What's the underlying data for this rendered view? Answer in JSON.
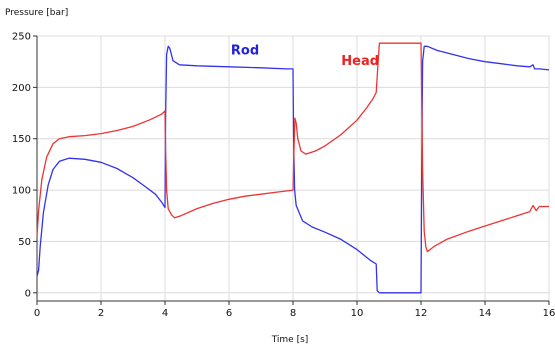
{
  "chart_data": {
    "type": "line",
    "title": "",
    "ylabel": "Pressure [bar]",
    "xlabel": "Time [s]",
    "xlim": [
      0,
      16
    ],
    "ylim": [
      -8,
      250
    ],
    "xticks": [
      0,
      2,
      4,
      6,
      8,
      10,
      12,
      14,
      16
    ],
    "yticks": [
      0,
      50,
      100,
      150,
      200,
      250
    ],
    "grid": true,
    "legend": "inline labels",
    "series": [
      {
        "name": "Rod",
        "color": "#3333ee",
        "label_color": "#2222dd",
        "points": [
          [
            0,
            16
          ],
          [
            0.05,
            22
          ],
          [
            0.1,
            45
          ],
          [
            0.2,
            78
          ],
          [
            0.35,
            105
          ],
          [
            0.5,
            120
          ],
          [
            0.7,
            128
          ],
          [
            1.0,
            131
          ],
          [
            1.5,
            130
          ],
          [
            2.0,
            127
          ],
          [
            2.5,
            121
          ],
          [
            3.0,
            112
          ],
          [
            3.4,
            103
          ],
          [
            3.7,
            96
          ],
          [
            3.9,
            88
          ],
          [
            4.0,
            83
          ],
          [
            4.02,
            170
          ],
          [
            4.05,
            232
          ],
          [
            4.1,
            240
          ],
          [
            4.15,
            238
          ],
          [
            4.25,
            226
          ],
          [
            4.45,
            222
          ],
          [
            5.0,
            221
          ],
          [
            6.0,
            220
          ],
          [
            7.0,
            219
          ],
          [
            7.8,
            218
          ],
          [
            8.0,
            218
          ],
          [
            8.02,
            150
          ],
          [
            8.05,
            100
          ],
          [
            8.1,
            85
          ],
          [
            8.3,
            70
          ],
          [
            8.6,
            64
          ],
          [
            9.0,
            59
          ],
          [
            9.5,
            52
          ],
          [
            10.0,
            42
          ],
          [
            10.4,
            32
          ],
          [
            10.6,
            28
          ],
          [
            10.63,
            2
          ],
          [
            10.7,
            0
          ],
          [
            11.0,
            0
          ],
          [
            11.5,
            0
          ],
          [
            11.9,
            0
          ],
          [
            12.0,
            0
          ],
          [
            12.02,
            100
          ],
          [
            12.05,
            225
          ],
          [
            12.1,
            240
          ],
          [
            12.2,
            240
          ],
          [
            12.5,
            236
          ],
          [
            13.0,
            232
          ],
          [
            13.5,
            228
          ],
          [
            14.0,
            225
          ],
          [
            14.5,
            223
          ],
          [
            15.0,
            221
          ],
          [
            15.4,
            220
          ],
          [
            15.5,
            222
          ],
          [
            15.55,
            218
          ],
          [
            15.7,
            218
          ],
          [
            16.0,
            217
          ]
        ]
      },
      {
        "name": "Head",
        "color": "#ee3333",
        "label_color": "#ee2222",
        "points": [
          [
            0,
            55
          ],
          [
            0.05,
            80
          ],
          [
            0.15,
            110
          ],
          [
            0.3,
            132
          ],
          [
            0.5,
            145
          ],
          [
            0.7,
            150
          ],
          [
            1.0,
            152
          ],
          [
            1.5,
            153
          ],
          [
            2.0,
            155
          ],
          [
            2.5,
            158
          ],
          [
            3.0,
            162
          ],
          [
            3.5,
            168
          ],
          [
            3.9,
            174
          ],
          [
            4.0,
            177
          ],
          [
            4.02,
            140
          ],
          [
            4.05,
            100
          ],
          [
            4.1,
            82
          ],
          [
            4.2,
            76
          ],
          [
            4.3,
            73
          ],
          [
            4.5,
            75
          ],
          [
            5.0,
            82
          ],
          [
            5.5,
            87
          ],
          [
            6.0,
            91
          ],
          [
            6.5,
            94
          ],
          [
            7.0,
            96
          ],
          [
            7.5,
            98
          ],
          [
            8.0,
            100
          ],
          [
            8.03,
            140
          ],
          [
            8.06,
            170
          ],
          [
            8.1,
            165
          ],
          [
            8.15,
            150
          ],
          [
            8.25,
            138
          ],
          [
            8.4,
            135
          ],
          [
            8.7,
            138
          ],
          [
            9.0,
            143
          ],
          [
            9.5,
            154
          ],
          [
            10.0,
            168
          ],
          [
            10.3,
            180
          ],
          [
            10.5,
            189
          ],
          [
            10.6,
            195
          ],
          [
            10.65,
            220
          ],
          [
            10.7,
            243
          ],
          [
            11.0,
            243
          ],
          [
            11.5,
            243
          ],
          [
            11.9,
            243
          ],
          [
            12.0,
            243
          ],
          [
            12.02,
            200
          ],
          [
            12.05,
            120
          ],
          [
            12.1,
            60
          ],
          [
            12.15,
            45
          ],
          [
            12.2,
            40
          ],
          [
            12.4,
            45
          ],
          [
            12.8,
            52
          ],
          [
            13.5,
            60
          ],
          [
            14.0,
            65
          ],
          [
            14.5,
            70
          ],
          [
            15.0,
            75
          ],
          [
            15.4,
            79
          ],
          [
            15.5,
            85
          ],
          [
            15.6,
            80
          ],
          [
            15.7,
            84
          ],
          [
            16.0,
            84
          ]
        ]
      }
    ],
    "annotations": [
      {
        "text": "Rod",
        "x": 6.5,
        "y": 232,
        "color": "#2222dd"
      },
      {
        "text": "Head",
        "x": 10.1,
        "y": 222,
        "color": "#ee2222"
      }
    ]
  }
}
